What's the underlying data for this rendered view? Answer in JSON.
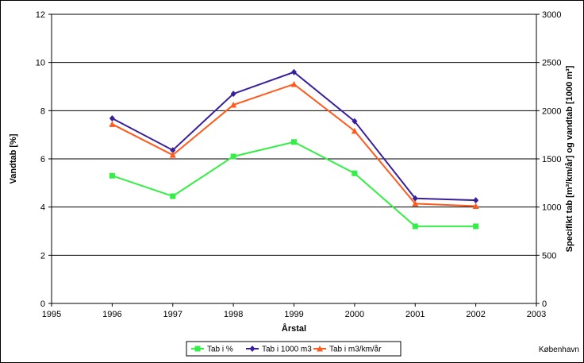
{
  "chart_data": {
    "type": "line",
    "title": "",
    "xlabel": "Årstal",
    "ylabel_left": "Vandtab [%]",
    "ylabel_right": "Specifikt tab [m³/km/år] og vandtab [1000 m³]",
    "xlim": [
      1995,
      2003
    ],
    "ylim_left": [
      0,
      12
    ],
    "ylim_right": [
      0,
      3000
    ],
    "x_ticks": [
      1995,
      1996,
      1997,
      1998,
      1999,
      2000,
      2001,
      2002,
      2003
    ],
    "y_ticks_left": [
      0,
      2,
      4,
      6,
      8,
      10,
      12
    ],
    "y_ticks_right": [
      0,
      500,
      1000,
      1500,
      2000,
      2500,
      3000
    ],
    "grid": "horizontal",
    "legend_position": "bottom",
    "series": [
      {
        "name": "Tab i %",
        "axis": "left",
        "color": "#33ee44",
        "marker": "square",
        "x": [
          1996,
          1997,
          1998,
          1999,
          2000,
          2001,
          2002
        ],
        "y": [
          5.3,
          4.45,
          6.1,
          6.7,
          5.4,
          3.2,
          3.2
        ]
      },
      {
        "name": "Tab i 1000 m3",
        "axis": "right",
        "color": "#3a1f9a",
        "marker": "diamond",
        "x": [
          1996,
          1997,
          1998,
          1999,
          2000,
          2001,
          2002
        ],
        "y": [
          1920,
          1590,
          2175,
          2400,
          1890,
          1090,
          1070
        ]
      },
      {
        "name": "Tab i m3/km/år",
        "axis": "right",
        "color": "#ff5a1e",
        "marker": "triangle",
        "x": [
          1996,
          1997,
          1998,
          1999,
          2000,
          2001,
          2002
        ],
        "y": [
          1860,
          1540,
          2060,
          2275,
          1790,
          1035,
          1010
        ]
      }
    ],
    "annotation": "København"
  }
}
